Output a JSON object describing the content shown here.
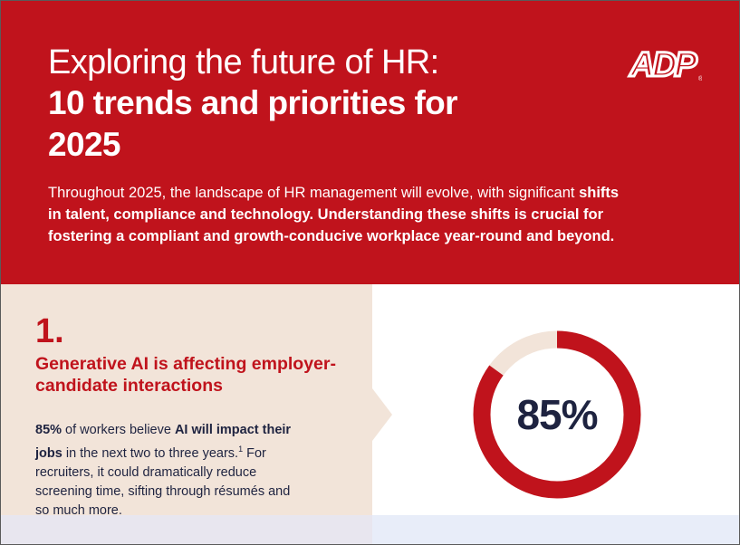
{
  "header": {
    "title_line1": "Exploring the future of HR:",
    "title_line2": "10 trends and priorities for 2025",
    "intro_plain": "Throughout 2025, the landscape of HR management will evolve, with significant",
    "intro_bold": "shifts in talent, compliance and technology. Understanding these shifts is crucial for fostering a compliant and growth-conducive workplace year-round and beyond.",
    "logo": {
      "text": "ADP",
      "icon": "adp-logo-icon"
    }
  },
  "trend": {
    "number": "1.",
    "title": "Generative AI is affecting employer-candidate interactions",
    "stat_bold": "85%",
    "text_a": " of workers believe ",
    "bold_a": "AI will impact their jobs",
    "text_b": " in the next two to three years.",
    "footnote": "1",
    "text_c": " For recruiters, it could dramatically reduce screening time, sifting through résumés and so much more."
  },
  "stat": {
    "label": "85%",
    "value": 0.85
  },
  "colors": {
    "brand_red": "#c0131c",
    "beige": "#f2e4d9",
    "navy": "#1e2340"
  }
}
